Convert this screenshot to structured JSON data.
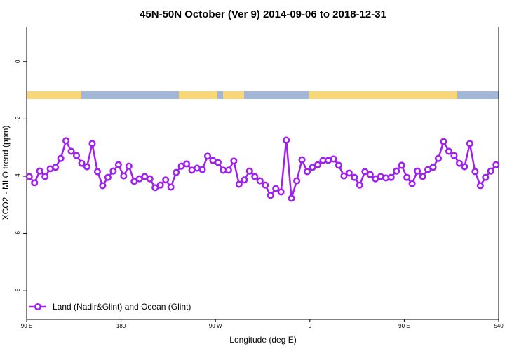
{
  "chart_data": {
    "type": "line",
    "title": "45N-50N October (Ver 9)   2014-09-06 to 2018-12-31",
    "x_label": "Longitude (deg E)",
    "y_label": "XCO2 - MLO trend (ppm)",
    "x": [
      92.5,
      97.5,
      102.5,
      107.5,
      112.5,
      117.5,
      122.5,
      127.5,
      132.5,
      137.5,
      142.5,
      147.5,
      152.5,
      157.5,
      162.5,
      167.5,
      172.5,
      177.5,
      182.5,
      187.5,
      192.5,
      197.5,
      202.5,
      207.5,
      212.5,
      217.5,
      222.5,
      227.5,
      232.5,
      237.5,
      242.5,
      247.5,
      252.5,
      257.5,
      262.5,
      267.5,
      272.5,
      277.5,
      282.5,
      287.5,
      292.5,
      297.5,
      302.5,
      307.5,
      312.5,
      317.5,
      322.5,
      327.5,
      332.5,
      337.5,
      342.5,
      347.5,
      352.5,
      357.5,
      362.5,
      367.5,
      372.5,
      377.5,
      382.5,
      387.5,
      392.5,
      397.5,
      402.5,
      407.5,
      412.5,
      417.5,
      422.5,
      427.5,
      432.5,
      437.5,
      442.5,
      447.5,
      452.5,
      457.5,
      462.5,
      467.5,
      472.5,
      477.5,
      482.5,
      487.5,
      492.5,
      497.5,
      502.5,
      507.5,
      512.5,
      517.5,
      522.5,
      527.5,
      532.5,
      537.5
    ],
    "series": [
      {
        "name": "Land (Nadir&Glint) and Ocean (Glint)",
        "color": "#a020f0",
        "values": [
          -4.01,
          -4.23,
          -3.82,
          -4.01,
          -3.74,
          -3.69,
          -3.38,
          -2.76,
          -3.13,
          -3.28,
          -3.55,
          -3.67,
          -2.86,
          -3.84,
          -4.33,
          -4.04,
          -3.82,
          -3.6,
          -3.99,
          -3.65,
          -4.18,
          -4.09,
          -4.01,
          -4.09,
          -4.4,
          -4.31,
          -4.13,
          -4.38,
          -3.87,
          -3.65,
          -3.57,
          -3.79,
          -3.72,
          -3.77,
          -3.3,
          -3.45,
          -3.52,
          -3.79,
          -3.79,
          -3.47,
          -4.28,
          -4.13,
          -3.82,
          -4.01,
          -4.16,
          -4.31,
          -4.67,
          -4.43,
          -4.55,
          -2.74,
          -4.77,
          -4.16,
          -3.43,
          -3.84,
          -3.69,
          -3.6,
          -3.45,
          -3.45,
          -3.4,
          -3.62,
          -3.99,
          -3.89,
          -4.04,
          -4.31,
          -3.84,
          -3.94,
          -4.09,
          -4.01,
          -4.06,
          -4.04,
          -3.82,
          -3.62,
          -4.04,
          -4.26,
          -3.82,
          -4.01,
          -3.77,
          -3.69,
          -3.38,
          -2.79,
          -3.13,
          -3.28,
          -3.55,
          -3.67,
          -2.86,
          -3.84,
          -4.33,
          -4.04,
          -3.82,
          -3.6
        ]
      }
    ],
    "xlim": [
      90,
      540
    ],
    "xticks": [
      {
        "value": 90,
        "label": "90 E"
      },
      180,
      {
        "value": 270,
        "label": "90 W"
      },
      {
        "value": 360,
        "label": "0"
      },
      {
        "value": 450,
        "label": "90 E"
      },
      540
    ],
    "ylim": [
      -9,
      1.22
    ],
    "yticks": [
      0,
      -2,
      -4,
      -6,
      -8
    ],
    "legend": "bottomleft"
  }
}
